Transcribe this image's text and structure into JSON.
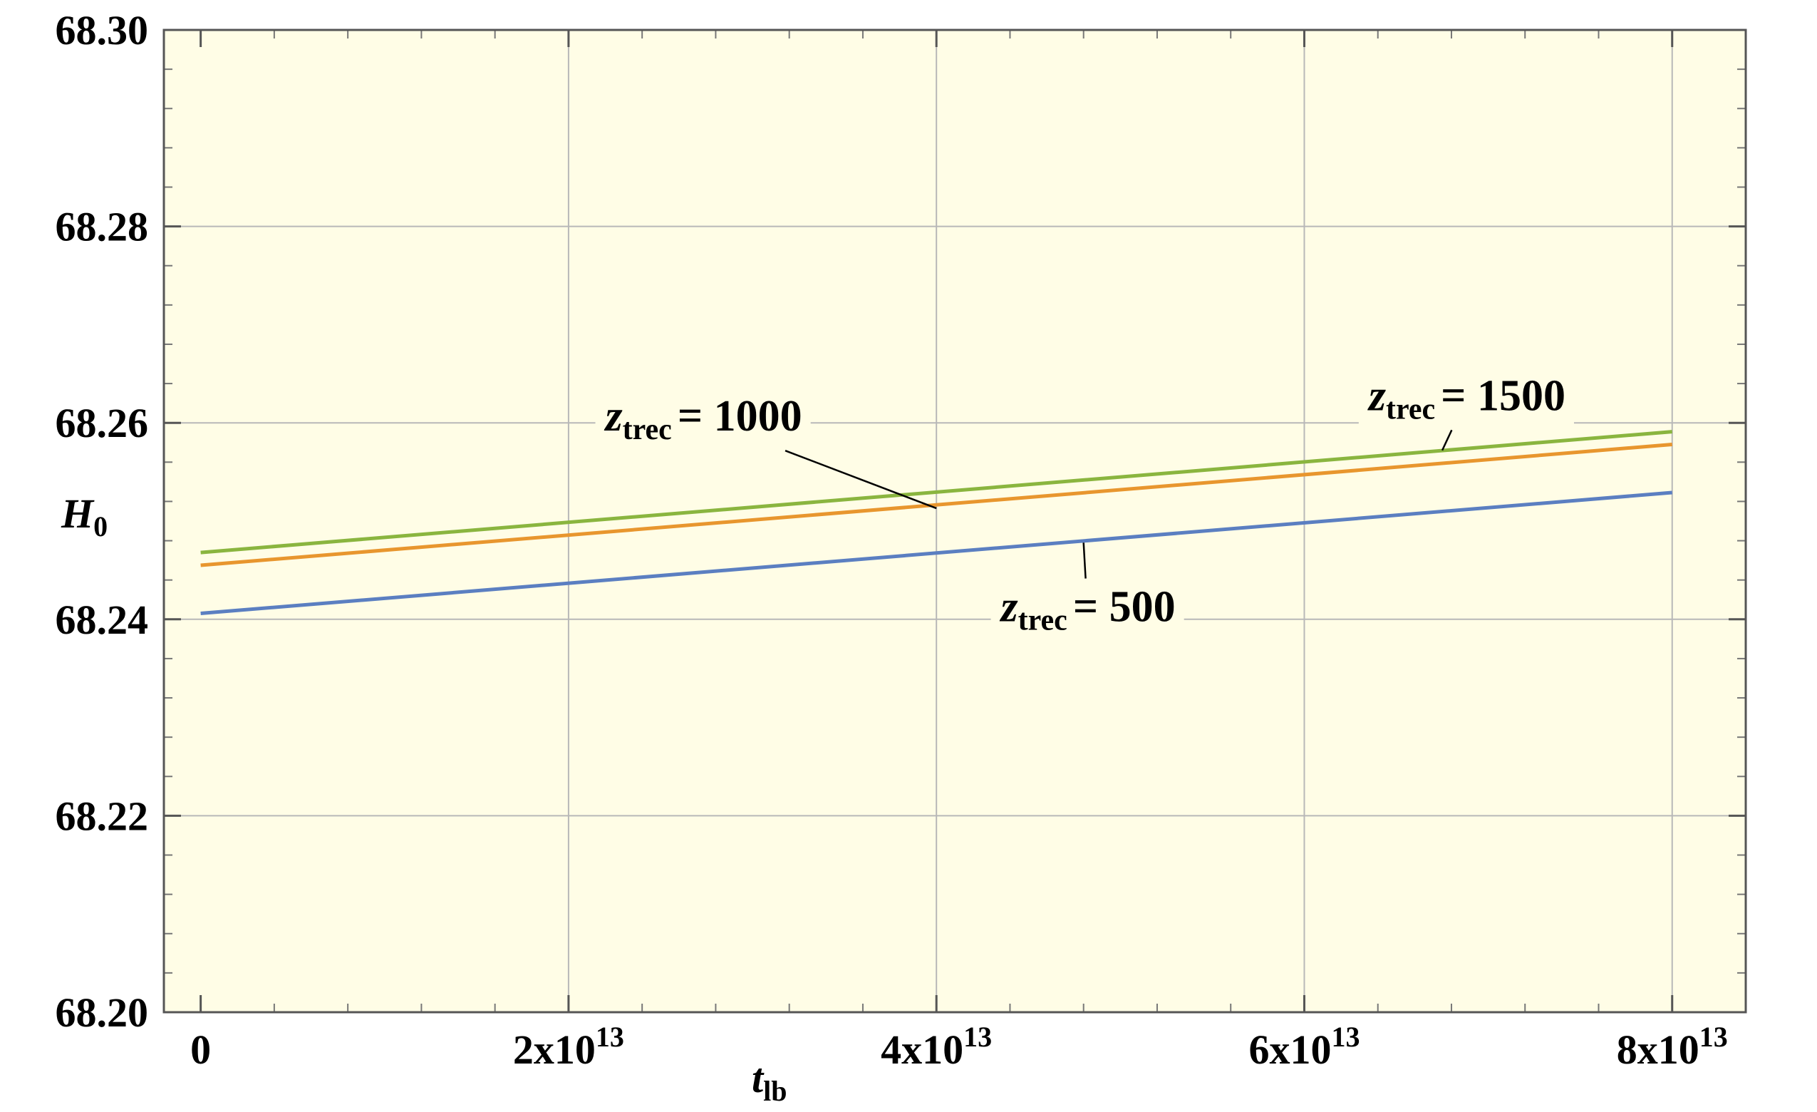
{
  "chart_data": {
    "type": "line",
    "xlabel": "t",
    "xlabel_sub": "lb",
    "ylabel": "H",
    "ylabel_sub": "0",
    "xlim": [
      -2000000000000.0,
      84000000000000.0
    ],
    "ylim": [
      68.2,
      68.3
    ],
    "grid": true,
    "background": "#fffde6",
    "x_ticks": [
      {
        "value": 0,
        "base": "0",
        "exp": ""
      },
      {
        "value": 20000000000000.0,
        "base": "2x10",
        "exp": "13"
      },
      {
        "value": 40000000000000.0,
        "base": "4x10",
        "exp": "13"
      },
      {
        "value": 60000000000000.0,
        "base": "6x10",
        "exp": "13"
      },
      {
        "value": 80000000000000.0,
        "base": "8x10",
        "exp": "13"
      }
    ],
    "y_ticks": [
      {
        "value": 68.2,
        "label": "68.20"
      },
      {
        "value": 68.22,
        "label": "68.22"
      },
      {
        "value": 68.24,
        "label": "68.24"
      },
      {
        "value": 68.26,
        "label": "68.26"
      },
      {
        "value": 68.28,
        "label": "68.28"
      },
      {
        "value": 68.3,
        "label": "68.30"
      }
    ],
    "series": [
      {
        "name": "z_trec = 500",
        "color": "#5b7fc1",
        "x": [
          0,
          80000000000000.0
        ],
        "y": [
          68.2406,
          68.2529
        ]
      },
      {
        "name": "z_trec = 1000",
        "color": "#e8962e",
        "x": [
          0,
          80000000000000.0
        ],
        "y": [
          68.2455,
          68.2578
        ]
      },
      {
        "name": "z_trec = 1500",
        "color": "#8ab53f",
        "x": [
          0,
          80000000000000.0
        ],
        "y": [
          68.2468,
          68.2591
        ]
      }
    ],
    "annotations": [
      {
        "z": "z",
        "sub": "trec",
        "value": "= 1000",
        "text_x": 22000000000000.0,
        "text_y": 68.2592,
        "point_x": 40000000000000.0,
        "point_y": 68.2513
      },
      {
        "z": "z",
        "sub": "trec",
        "value": "= 1500",
        "text_x": 63500000000000.0,
        "text_y": 68.2613,
        "point_x": 67500000000000.0,
        "point_y": 68.2572
      },
      {
        "z": "z",
        "sub": "trec",
        "value": "= 500",
        "text_x": 43500000000000.0,
        "text_y": 68.2398,
        "point_x": 48000000000000.0,
        "point_y": 68.2478
      }
    ]
  }
}
